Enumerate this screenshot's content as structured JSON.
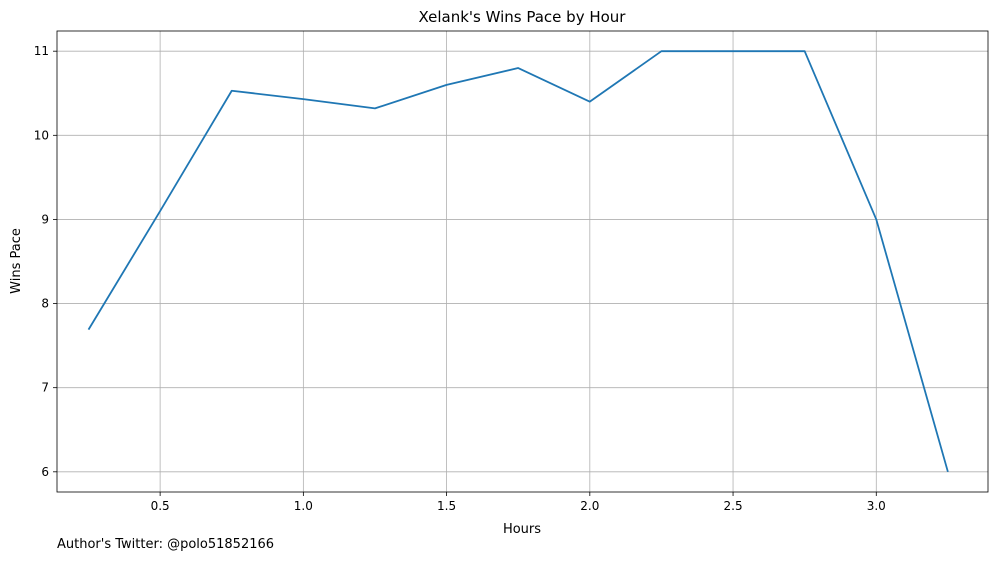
{
  "chart_data": {
    "type": "line",
    "title": "Xelank's Wins Pace by Hour",
    "xlabel": "Hours",
    "ylabel": "Wins Pace",
    "xlim": [
      0.14,
      3.39
    ],
    "ylim": [
      5.76,
      11.24
    ],
    "xticks": [
      0.5,
      1.0,
      1.5,
      2.0,
      2.5,
      3.0
    ],
    "xtick_labels": [
      "0.5",
      "1.0",
      "1.5",
      "2.0",
      "2.5",
      "3.0"
    ],
    "yticks": [
      6,
      7,
      8,
      9,
      10,
      11
    ],
    "ytick_labels": [
      "6",
      "7",
      "8",
      "9",
      "10",
      "11"
    ],
    "grid": true,
    "series": [
      {
        "x": [
          0.25,
          0.5,
          0.75,
          1.0,
          1.25,
          1.5,
          1.75,
          2.0,
          2.25,
          2.5,
          2.75,
          3.0,
          3.25
        ],
        "y": [
          7.69,
          9.1,
          10.53,
          10.43,
          10.32,
          10.6,
          10.8,
          10.4,
          11.0,
          11.0,
          11.0,
          9.0,
          6.0
        ],
        "color": "#1f77b4"
      }
    ]
  },
  "footnote": "Author's Twitter: @polo51852166"
}
